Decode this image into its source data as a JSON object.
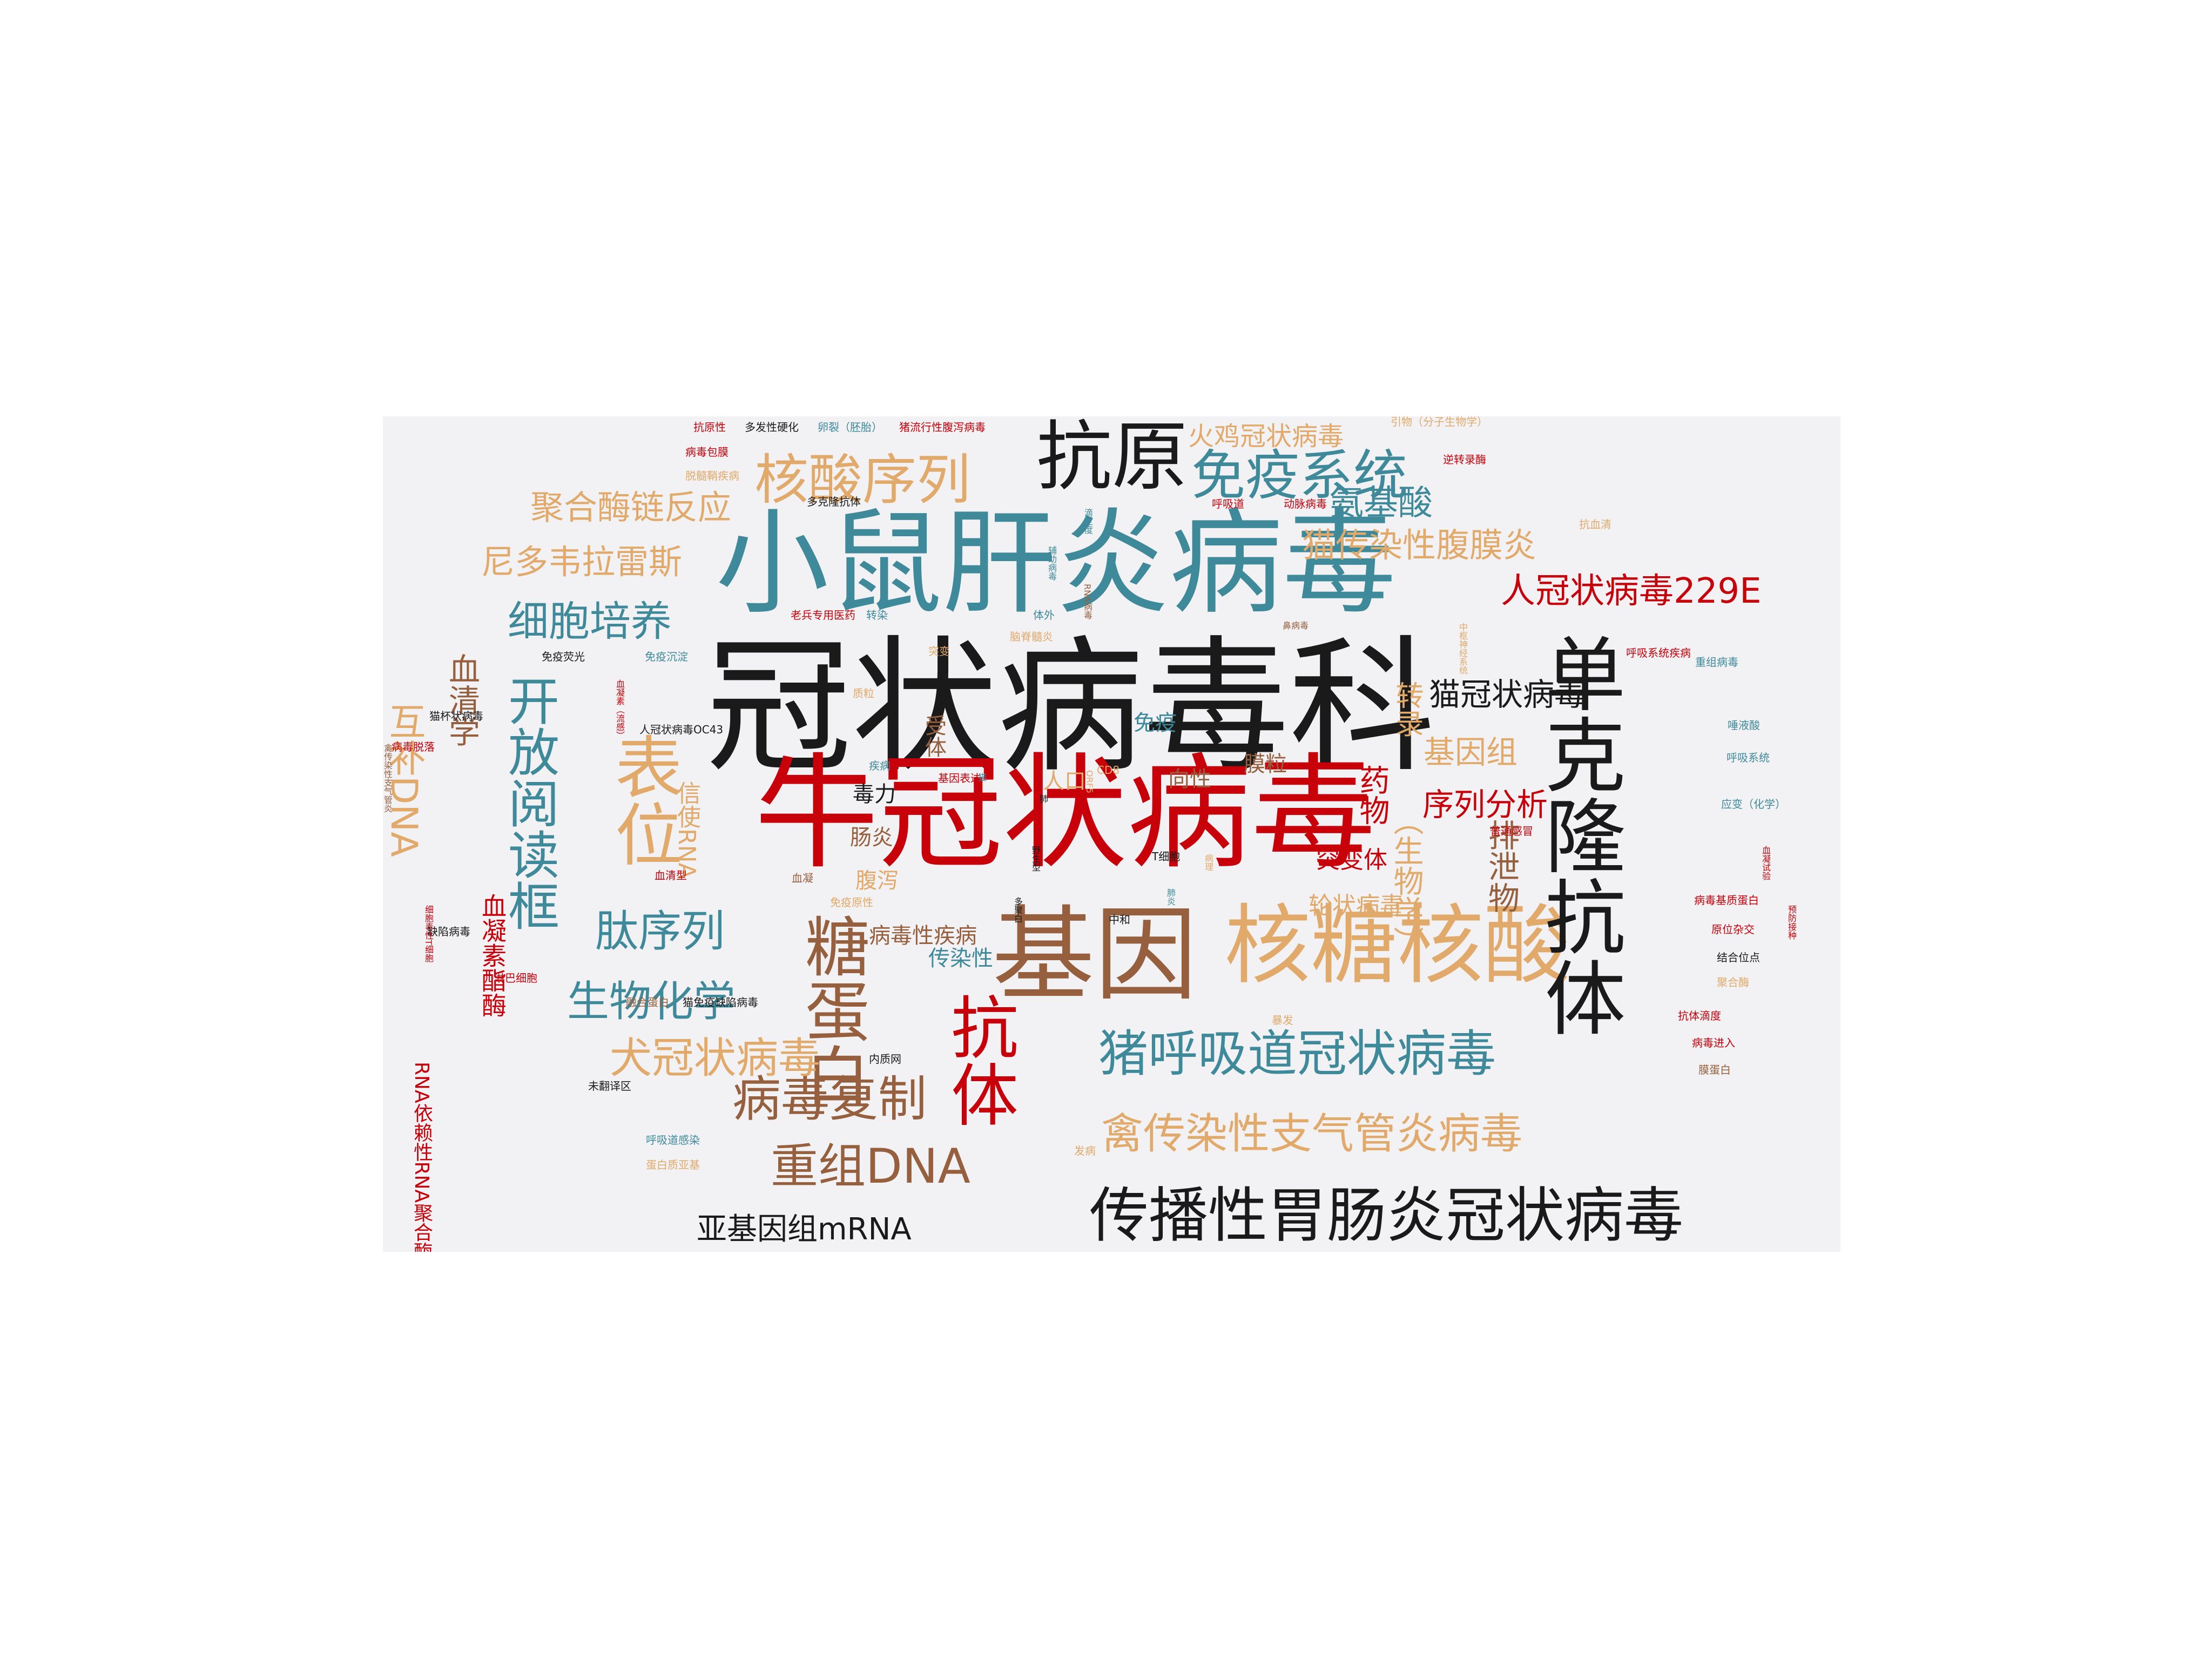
{
  "colors": {
    "black": "#1a1a1a",
    "red": "#c8000a",
    "teal": "#3f8a9a",
    "tan": "#e1a96a",
    "brown": "#96603f",
    "background": "#f2f2f4"
  },
  "words": [
    {
      "id": "w001",
      "text": "冠状病毒科",
      "color": "black",
      "orient": "h"
    },
    {
      "id": "w002",
      "text": "小鼠肝炎病毒",
      "color": "teal",
      "orient": "h"
    },
    {
      "id": "w003",
      "text": "牛冠状病毒",
      "color": "red",
      "orient": "h"
    },
    {
      "id": "w004",
      "text": "基因",
      "color": "brown",
      "orient": "h"
    },
    {
      "id": "w005",
      "text": "核糖核酸",
      "color": "tan",
      "orient": "h"
    },
    {
      "id": "w006",
      "text": "抗原",
      "color": "black",
      "orient": "h"
    },
    {
      "id": "w007",
      "text": "核酸序列",
      "color": "tan",
      "orient": "h"
    },
    {
      "id": "w008",
      "text": "免疫系统",
      "color": "teal",
      "orient": "h"
    },
    {
      "id": "w009",
      "text": "单克隆抗体",
      "color": "black",
      "orient": "v"
    },
    {
      "id": "w010",
      "text": "抗体",
      "color": "red",
      "orient": "v"
    },
    {
      "id": "w011",
      "text": "糖蛋白",
      "color": "brown",
      "orient": "v"
    },
    {
      "id": "w012",
      "text": "表位",
      "color": "tan",
      "orient": "v"
    },
    {
      "id": "w013",
      "text": "开放阅读框",
      "color": "teal",
      "orient": "v"
    },
    {
      "id": "w014",
      "text": "传播性胃肠炎冠状病毒",
      "color": "black",
      "orient": "h"
    },
    {
      "id": "w015",
      "text": "猪呼吸道冠状病毒",
      "color": "teal",
      "orient": "h"
    },
    {
      "id": "w016",
      "text": "禽传染性支气管炎病毒",
      "color": "tan",
      "orient": "h"
    },
    {
      "id": "w017",
      "text": "病毒复制",
      "color": "brown",
      "orient": "h"
    },
    {
      "id": "w018",
      "text": "重组DNA",
      "color": "brown",
      "orient": "h"
    },
    {
      "id": "w019",
      "text": "犬冠状病毒",
      "color": "tan",
      "orient": "h"
    },
    {
      "id": "w020",
      "text": "生物化学",
      "color": "teal",
      "orient": "h"
    },
    {
      "id": "w021",
      "text": "肽序列",
      "color": "teal",
      "orient": "h"
    },
    {
      "id": "w022",
      "text": "细胞培养",
      "color": "teal",
      "orient": "h"
    },
    {
      "id": "w023",
      "text": "尼多韦拉雷斯",
      "color": "tan",
      "orient": "h"
    },
    {
      "id": "w024",
      "text": "聚合酶链反应",
      "color": "tan",
      "orient": "h"
    },
    {
      "id": "w025",
      "text": "猫传染性腹膜炎",
      "color": "tan",
      "orient": "h"
    },
    {
      "id": "w026",
      "text": "人冠状病毒229E",
      "color": "red",
      "orient": "h"
    },
    {
      "id": "w027",
      "text": "氨基酸",
      "color": "teal",
      "orient": "h"
    },
    {
      "id": "w028",
      "text": "火鸡冠状病毒",
      "color": "tan",
      "orient": "h"
    },
    {
      "id": "w029",
      "text": "猫冠状病毒",
      "color": "black",
      "orient": "h"
    },
    {
      "id": "w030",
      "text": "基因组",
      "color": "tan",
      "orient": "h"
    },
    {
      "id": "w031",
      "text": "序列分析",
      "color": "red",
      "orient": "h"
    },
    {
      "id": "w032",
      "text": "排泄物",
      "color": "brown",
      "orient": "v"
    },
    {
      "id": "w033",
      "text": "（生物学）",
      "color": "tan",
      "orient": "v"
    },
    {
      "id": "w034",
      "text": "转录",
      "color": "tan",
      "orient": "v"
    },
    {
      "id": "w035",
      "text": "药物",
      "color": "red",
      "orient": "v"
    },
    {
      "id": "w036",
      "text": "突变体",
      "color": "red",
      "orient": "h"
    },
    {
      "id": "w037",
      "text": "轮状病毒",
      "color": "tan",
      "orient": "h"
    },
    {
      "id": "w038",
      "text": "互补DNA",
      "color": "tan",
      "orient": "v"
    },
    {
      "id": "w039",
      "text": "血清学",
      "color": "brown",
      "orient": "v"
    },
    {
      "id": "w040",
      "text": "信使RNA",
      "color": "tan",
      "orient": "v"
    },
    {
      "id": "w041",
      "text": "血凝素酯酶",
      "color": "red",
      "orient": "v"
    },
    {
      "id": "w042",
      "text": "RNA依赖性RNA聚合酶",
      "color": "red",
      "orient": "v"
    },
    {
      "id": "w043",
      "text": "亚基因组mRNA",
      "color": "black",
      "orient": "h"
    },
    {
      "id": "w044",
      "text": "病毒性疾病",
      "color": "brown",
      "orient": "h"
    },
    {
      "id": "w045",
      "text": "传染性",
      "color": "teal",
      "orient": "h"
    },
    {
      "id": "w046",
      "text": "腹泻",
      "color": "tan",
      "orient": "h"
    },
    {
      "id": "w047",
      "text": "肠炎",
      "color": "brown",
      "orient": "h"
    },
    {
      "id": "w048",
      "text": "毒力",
      "color": "black",
      "orient": "h"
    },
    {
      "id": "w049",
      "text": "受体",
      "color": "brown",
      "orient": "v"
    },
    {
      "id": "w050",
      "text": "人口",
      "color": "tan",
      "orient": "h"
    },
    {
      "id": "w051",
      "text": "免疫",
      "color": "teal",
      "orient": "h"
    },
    {
      "id": "w052",
      "text": "向性",
      "color": "brown",
      "orient": "h"
    },
    {
      "id": "w053",
      "text": "膜粒",
      "color": "brown",
      "orient": "h"
    },
    {
      "id": "w054",
      "text": "抗原性",
      "color": "red",
      "orient": "h"
    },
    {
      "id": "w055",
      "text": "多发性硬化",
      "color": "black",
      "orient": "h"
    },
    {
      "id": "w056",
      "text": "卵裂（胚胎）",
      "color": "teal",
      "orient": "h"
    },
    {
      "id": "w057",
      "text": "猪流行性腹泻病毒",
      "color": "red",
      "orient": "h"
    },
    {
      "id": "w058",
      "text": "病毒包膜",
      "color": "red",
      "orient": "h"
    },
    {
      "id": "w059",
      "text": "脱髓鞘疾病",
      "color": "tan",
      "orient": "h"
    },
    {
      "id": "w060",
      "text": "多克隆抗体",
      "color": "black",
      "orient": "h"
    },
    {
      "id": "w061",
      "text": "老兵专用医药",
      "color": "red",
      "orient": "h"
    },
    {
      "id": "w062",
      "text": "转染",
      "color": "teal",
      "orient": "h"
    },
    {
      "id": "w063",
      "text": "免疫荧光",
      "color": "black",
      "orient": "h"
    },
    {
      "id": "w064",
      "text": "免疫沉淀",
      "color": "teal",
      "orient": "h"
    },
    {
      "id": "w065",
      "text": "猫杯状病毒",
      "color": "black",
      "orient": "h"
    },
    {
      "id": "w066",
      "text": "人冠状病毒OC43",
      "color": "black",
      "orient": "h"
    },
    {
      "id": "w067",
      "text": "病毒脱落",
      "color": "red",
      "orient": "h"
    },
    {
      "id": "w068",
      "text": "禽传染性支气管炎",
      "color": "brown",
      "orient": "v"
    },
    {
      "id": "w069",
      "text": "细胞毒性T细胞",
      "color": "red",
      "orient": "v"
    },
    {
      "id": "w070",
      "text": "血凝素（流感）",
      "color": "red",
      "orient": "v"
    },
    {
      "id": "w071",
      "text": "血清型",
      "color": "red",
      "orient": "h"
    },
    {
      "id": "w072",
      "text": "血凝",
      "color": "brown",
      "orient": "h"
    },
    {
      "id": "w073",
      "text": "缺陷病毒",
      "color": "black",
      "orient": "h"
    },
    {
      "id": "w074",
      "text": "淋巴细胞",
      "color": "red",
      "orient": "h"
    },
    {
      "id": "w075",
      "text": "融合蛋白",
      "color": "brown",
      "orient": "h"
    },
    {
      "id": "w076",
      "text": "猫免疫缺陷病毒",
      "color": "black",
      "orient": "h"
    },
    {
      "id": "w077",
      "text": "内质网",
      "color": "black",
      "orient": "h"
    },
    {
      "id": "w078",
      "text": "未翻译区",
      "color": "black",
      "orient": "h"
    },
    {
      "id": "w079",
      "text": "呼吸道感染",
      "color": "teal",
      "orient": "h"
    },
    {
      "id": "w080",
      "text": "蛋白质亚基",
      "color": "tan",
      "orient": "h"
    },
    {
      "id": "w081",
      "text": "引物（分子生物学）",
      "color": "tan",
      "orient": "h"
    },
    {
      "id": "w082",
      "text": "逆转录酶",
      "color": "red",
      "orient": "h"
    },
    {
      "id": "w083",
      "text": "呼吸道",
      "color": "red",
      "orient": "h"
    },
    {
      "id": "w084",
      "text": "动脉病毒",
      "color": "red",
      "orient": "h"
    },
    {
      "id": "w085",
      "text": "抗血清",
      "color": "tan",
      "orient": "h"
    },
    {
      "id": "w086",
      "text": "鼻病毒",
      "color": "brown",
      "orient": "h"
    },
    {
      "id": "w087",
      "text": "呼吸系统疾病",
      "color": "red",
      "orient": "h"
    },
    {
      "id": "w088",
      "text": "重组病毒",
      "color": "teal",
      "orient": "h"
    },
    {
      "id": "w089",
      "text": "唾液酸",
      "color": "teal",
      "orient": "h"
    },
    {
      "id": "w090",
      "text": "呼吸系统",
      "color": "teal",
      "orient": "h"
    },
    {
      "id": "w091",
      "text": "应变（化学）",
      "color": "teal",
      "orient": "h"
    },
    {
      "id": "w092",
      "text": "普通感冒",
      "color": "red",
      "orient": "h"
    },
    {
      "id": "w093",
      "text": "病毒基质蛋白",
      "color": "red",
      "orient": "h"
    },
    {
      "id": "w094",
      "text": "原位杂交",
      "color": "red",
      "orient": "h"
    },
    {
      "id": "w095",
      "text": "结合位点",
      "color": "black",
      "orient": "h"
    },
    {
      "id": "w096",
      "text": "聚合酶",
      "color": "tan",
      "orient": "h"
    },
    {
      "id": "w097",
      "text": "抗体滴度",
      "color": "red",
      "orient": "h"
    },
    {
      "id": "w098",
      "text": "病毒进入",
      "color": "red",
      "orient": "h"
    },
    {
      "id": "w099",
      "text": "膜蛋白",
      "color": "brown",
      "orient": "h"
    },
    {
      "id": "w100",
      "text": "血凝试验",
      "color": "red",
      "orient": "v"
    },
    {
      "id": "w101",
      "text": "预防接种",
      "color": "red",
      "orient": "v"
    },
    {
      "id": "w102",
      "text": "中枢神经系统",
      "color": "tan",
      "orient": "v"
    },
    {
      "id": "w103",
      "text": "暴发",
      "color": "tan",
      "orient": "h"
    },
    {
      "id": "w104",
      "text": "发病",
      "color": "tan",
      "orient": "h"
    },
    {
      "id": "w105",
      "text": "中和",
      "color": "black",
      "orient": "h"
    },
    {
      "id": "w106",
      "text": "T细胞",
      "color": "black",
      "orient": "h"
    },
    {
      "id": "w107",
      "text": "疾病",
      "color": "teal",
      "orient": "h"
    },
    {
      "id": "w108",
      "text": "基因表达",
      "color": "red",
      "orient": "h"
    },
    {
      "id": "w109",
      "text": "免疫原性",
      "color": "tan",
      "orient": "h"
    },
    {
      "id": "w110",
      "text": "CD8",
      "color": "tan",
      "orient": "h"
    },
    {
      "id": "w111",
      "text": "质粒",
      "color": "tan",
      "orient": "h"
    },
    {
      "id": "w112",
      "text": "突变",
      "color": "tan",
      "orient": "h"
    },
    {
      "id": "w113",
      "text": "体外",
      "color": "teal",
      "orient": "h"
    },
    {
      "id": "w114",
      "text": "脑脊髓炎",
      "color": "tan",
      "orient": "h"
    },
    {
      "id": "w115",
      "text": "辅助病毒",
      "color": "teal",
      "orient": "v"
    },
    {
      "id": "w116",
      "text": "滴定度",
      "color": "teal",
      "orient": "v"
    },
    {
      "id": "w117",
      "text": "RNA病毒",
      "color": "brown",
      "orient": "v"
    },
    {
      "id": "w118",
      "text": "ORF5",
      "color": "tan",
      "orient": "v"
    },
    {
      "id": "w119",
      "text": "猫",
      "color": "teal",
      "orient": "v"
    },
    {
      "id": "w120",
      "text": "肺",
      "color": "black",
      "orient": "v"
    },
    {
      "id": "w121",
      "text": "野生型",
      "color": "black",
      "orient": "v"
    },
    {
      "id": "w122",
      "text": "多聚白",
      "color": "black",
      "orient": "v"
    },
    {
      "id": "w123",
      "text": "肺炎",
      "color": "teal",
      "orient": "v"
    },
    {
      "id": "w124",
      "text": "病理",
      "color": "tan",
      "orient": "v"
    }
  ]
}
